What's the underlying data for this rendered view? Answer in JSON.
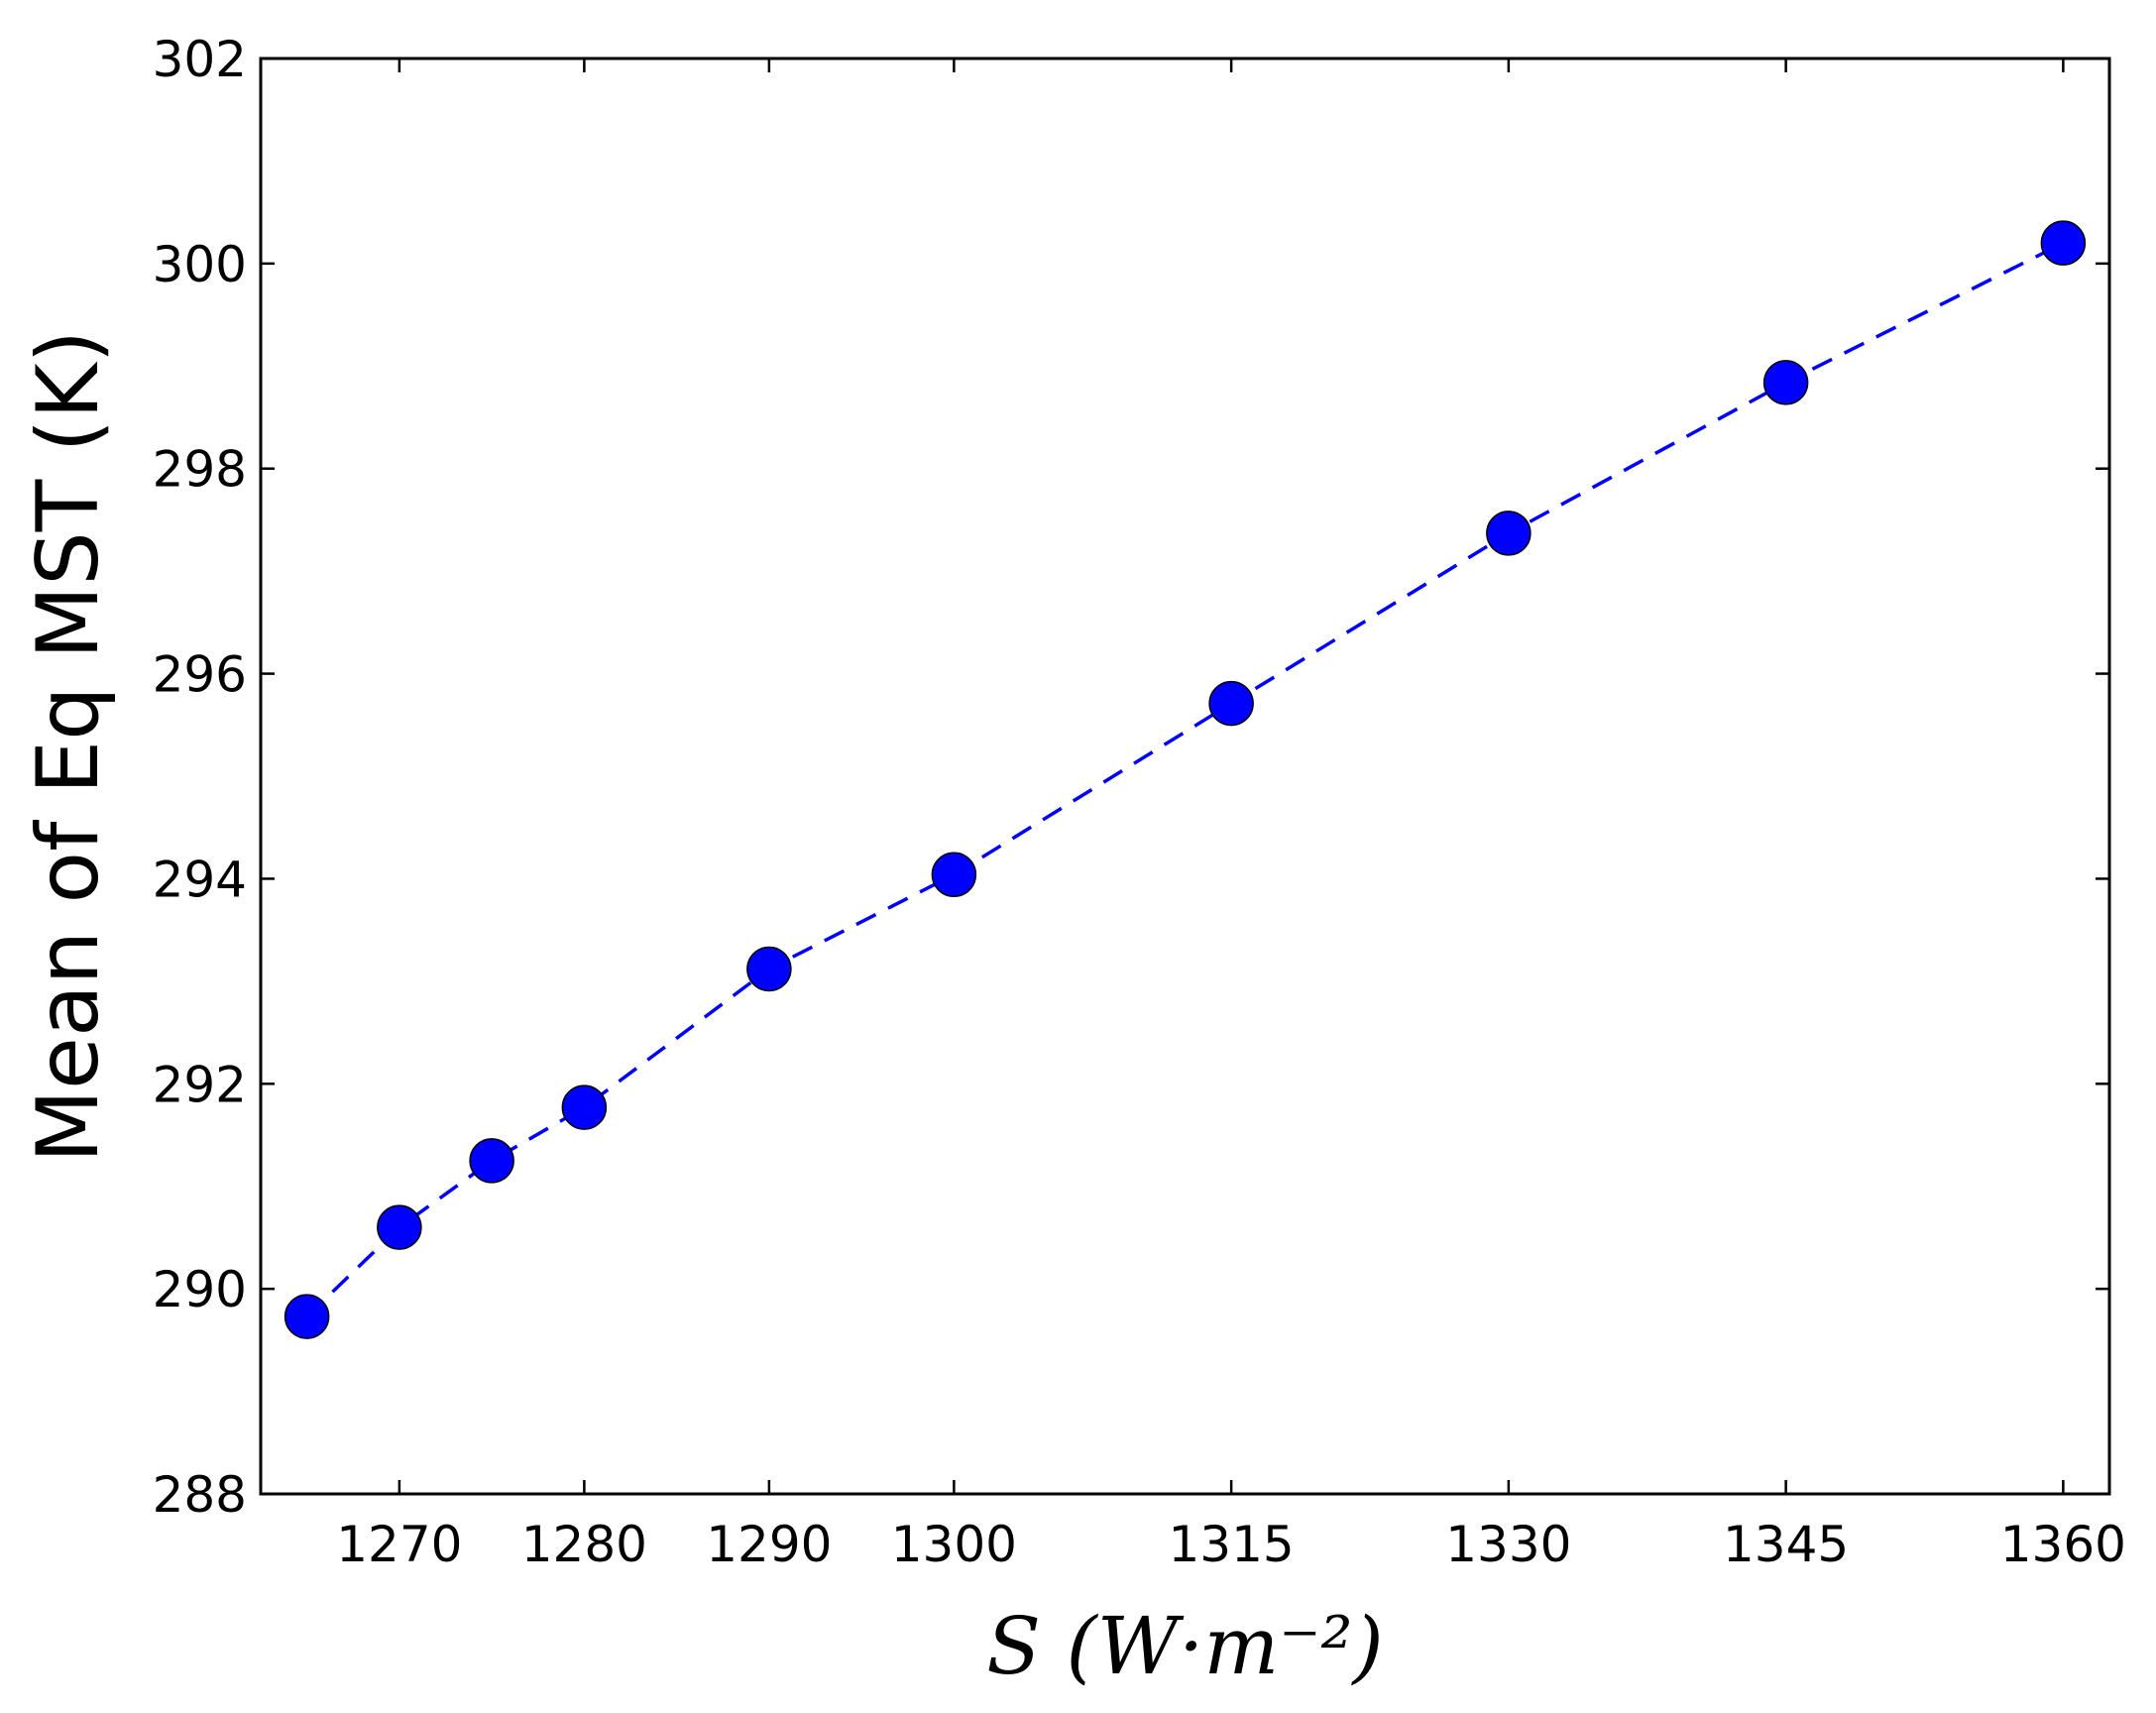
{
  "chart_data": {
    "type": "line",
    "title": "",
    "xlabel": "S (W·m⁻²)",
    "ylabel": "Mean of Eq MST (K)",
    "x": [
      1265,
      1270,
      1275,
      1280,
      1290,
      1300,
      1315,
      1330,
      1345,
      1360
    ],
    "series": [
      {
        "values": [
          289.73,
          290.6,
          291.25,
          291.77,
          293.12,
          294.04,
          295.71,
          297.37,
          298.84,
          300.2
        ],
        "color": "#0000ff",
        "line_style": "dashed",
        "marker": "circle"
      }
    ],
    "xlim": [
      1262.5,
      1362.5
    ],
    "ylim": [
      288,
      302
    ],
    "xticks": [
      "1270",
      "1280",
      "1290",
      "1300",
      "1315",
      "1330",
      "1345",
      "1360"
    ],
    "xtick_values": [
      1270,
      1280,
      1290,
      1300,
      1315,
      1330,
      1345,
      1360
    ],
    "yticks": [
      "288",
      "290",
      "292",
      "294",
      "296",
      "298",
      "300",
      "302"
    ],
    "ytick_values": [
      288,
      290,
      292,
      294,
      296,
      298,
      300,
      302
    ],
    "grid": false,
    "legend": "none"
  }
}
